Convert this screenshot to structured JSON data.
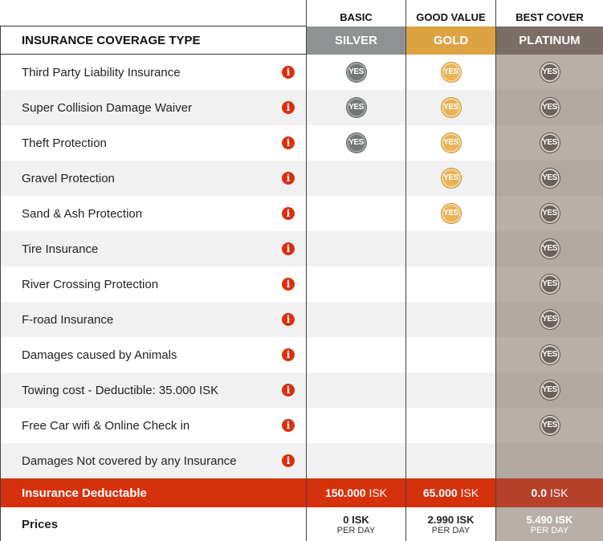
{
  "header": {
    "coverage_title": "INSURANCE COVERAGE TYPE",
    "tiers": [
      {
        "top_label": "BASIC",
        "name": "SILVER",
        "color": "#8e9293"
      },
      {
        "top_label": "GOOD VALUE",
        "name": "GOLD",
        "color": "#dba342"
      },
      {
        "top_label": "BEST COVER",
        "name": "PLATINUM",
        "color": "#7a6e66"
      }
    ]
  },
  "icons": {
    "info": "info-icon",
    "yes": "yes-badge-icon"
  },
  "yes_text": "YES",
  "info_glyph": "i",
  "rows": [
    {
      "label": "Third Party Liability Insurance",
      "silver": true,
      "gold": true,
      "platinum": true
    },
    {
      "label": "Super Collision Damage Waiver",
      "silver": true,
      "gold": true,
      "platinum": true
    },
    {
      "label": "Theft Protection",
      "silver": true,
      "gold": true,
      "platinum": true
    },
    {
      "label": "Gravel Protection",
      "silver": false,
      "gold": true,
      "platinum": true
    },
    {
      "label": "Sand & Ash Protection",
      "silver": false,
      "gold": true,
      "platinum": true
    },
    {
      "label": "Tire Insurance",
      "silver": false,
      "gold": false,
      "platinum": true
    },
    {
      "label": "River Crossing Protection",
      "silver": false,
      "gold": false,
      "platinum": true
    },
    {
      "label": "F-road Insurance",
      "silver": false,
      "gold": false,
      "platinum": true
    },
    {
      "label": "Damages caused by Animals",
      "silver": false,
      "gold": false,
      "platinum": true
    },
    {
      "label": "Towing cost - Deductible: 35.000 ISK",
      "silver": false,
      "gold": false,
      "platinum": true
    },
    {
      "label": "Free Car wifi & Online Check in",
      "silver": false,
      "gold": false,
      "platinum": true
    },
    {
      "label": "Damages Not covered by any Insurance",
      "silver": false,
      "gold": false,
      "platinum": false
    }
  ],
  "deductible": {
    "label": "Insurance Deductable",
    "values": [
      {
        "amount": "150.000",
        "unit": "ISK"
      },
      {
        "amount": "65.000",
        "unit": "ISK"
      },
      {
        "amount": "0.0",
        "unit": "ISK"
      }
    ]
  },
  "prices": {
    "label": "Prices",
    "values": [
      {
        "amount": "0 ISK",
        "per": "PER DAY"
      },
      {
        "amount": "2.990 ISK",
        "per": "PER DAY"
      },
      {
        "amount": "5.490 ISK",
        "per": "PER DAY"
      }
    ]
  },
  "colors": {
    "deductible_bar": "#d6310d",
    "info_icon": "#d9300f",
    "platinum_column": "#b8afa8"
  }
}
